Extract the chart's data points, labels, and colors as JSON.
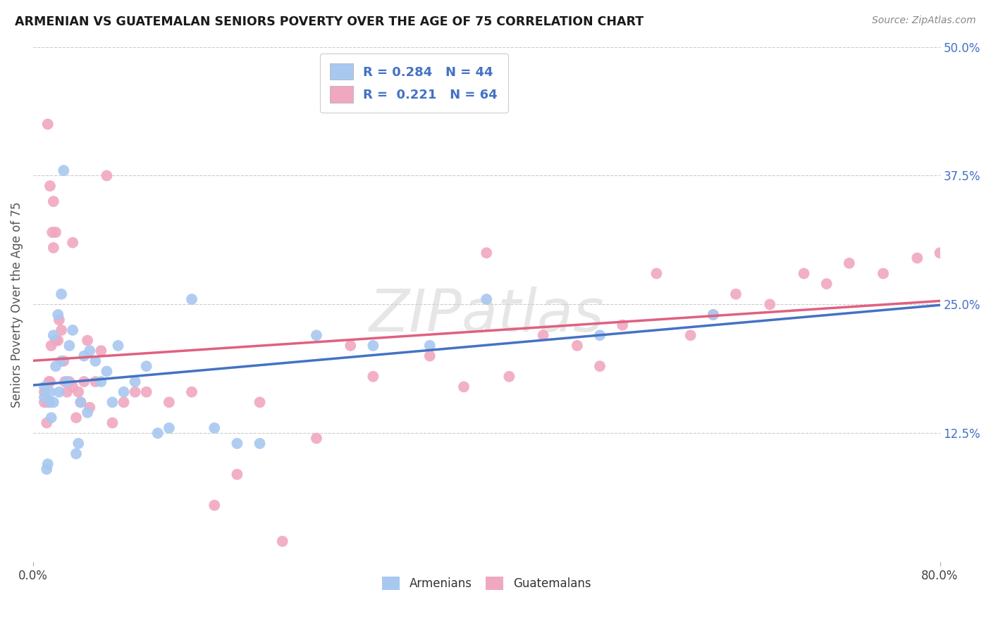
{
  "title": "ARMENIAN VS GUATEMALAN SENIORS POVERTY OVER THE AGE OF 75 CORRELATION CHART",
  "source": "Source: ZipAtlas.com",
  "ylabel": "Seniors Poverty Over the Age of 75",
  "xlim": [
    0.0,
    0.8
  ],
  "ylim": [
    0.0,
    0.5
  ],
  "yticks_right": [
    0.0,
    0.125,
    0.25,
    0.375,
    0.5
  ],
  "ytick_labels_right": [
    "",
    "12.5%",
    "25.0%",
    "37.5%",
    "50.0%"
  ],
  "armenian_color": "#a8c8f0",
  "guatemalan_color": "#f0a8c0",
  "armenian_line_color": "#4472c4",
  "guatemalan_line_color": "#e06080",
  "watermark_text": "ZIPatlas",
  "legend_line1": "R = 0.284   N = 44",
  "legend_line2": "R =  0.221   N = 64",
  "armenian_x": [
    0.01,
    0.01,
    0.012,
    0.013,
    0.015,
    0.015,
    0.016,
    0.018,
    0.018,
    0.02,
    0.022,
    0.023,
    0.025,
    0.025,
    0.027,
    0.03,
    0.032,
    0.035,
    0.038,
    0.04,
    0.042,
    0.045,
    0.048,
    0.05,
    0.055,
    0.06,
    0.065,
    0.07,
    0.075,
    0.08,
    0.09,
    0.1,
    0.11,
    0.12,
    0.14,
    0.16,
    0.18,
    0.2,
    0.25,
    0.3,
    0.35,
    0.4,
    0.5,
    0.6
  ],
  "armenian_y": [
    0.16,
    0.17,
    0.09,
    0.095,
    0.155,
    0.165,
    0.14,
    0.155,
    0.22,
    0.19,
    0.24,
    0.165,
    0.26,
    0.195,
    0.38,
    0.175,
    0.21,
    0.225,
    0.105,
    0.115,
    0.155,
    0.2,
    0.145,
    0.205,
    0.195,
    0.175,
    0.185,
    0.155,
    0.21,
    0.165,
    0.175,
    0.19,
    0.125,
    0.13,
    0.255,
    0.13,
    0.115,
    0.115,
    0.22,
    0.21,
    0.21,
    0.255,
    0.22,
    0.24
  ],
  "guatemalan_x": [
    0.01,
    0.01,
    0.012,
    0.013,
    0.014,
    0.015,
    0.016,
    0.017,
    0.018,
    0.02,
    0.022,
    0.023,
    0.025,
    0.027,
    0.028,
    0.03,
    0.032,
    0.035,
    0.035,
    0.038,
    0.04,
    0.042,
    0.045,
    0.048,
    0.05,
    0.055,
    0.06,
    0.065,
    0.07,
    0.08,
    0.09,
    0.1,
    0.12,
    0.14,
    0.16,
    0.18,
    0.2,
    0.22,
    0.25,
    0.28,
    0.3,
    0.35,
    0.38,
    0.4,
    0.42,
    0.45,
    0.48,
    0.5,
    0.52,
    0.55,
    0.58,
    0.6,
    0.62,
    0.65,
    0.68,
    0.7,
    0.72,
    0.75,
    0.78,
    0.8,
    0.013,
    0.015,
    0.018,
    0.02
  ],
  "guatemalan_y": [
    0.155,
    0.165,
    0.135,
    0.155,
    0.175,
    0.175,
    0.21,
    0.32,
    0.305,
    0.215,
    0.215,
    0.235,
    0.225,
    0.195,
    0.175,
    0.165,
    0.175,
    0.31,
    0.17,
    0.14,
    0.165,
    0.155,
    0.175,
    0.215,
    0.15,
    0.175,
    0.205,
    0.375,
    0.135,
    0.155,
    0.165,
    0.165,
    0.155,
    0.165,
    0.055,
    0.085,
    0.155,
    0.02,
    0.12,
    0.21,
    0.18,
    0.2,
    0.17,
    0.3,
    0.18,
    0.22,
    0.21,
    0.19,
    0.23,
    0.28,
    0.22,
    0.24,
    0.26,
    0.25,
    0.28,
    0.27,
    0.29,
    0.28,
    0.295,
    0.3,
    0.425,
    0.365,
    0.35,
    0.32
  ]
}
